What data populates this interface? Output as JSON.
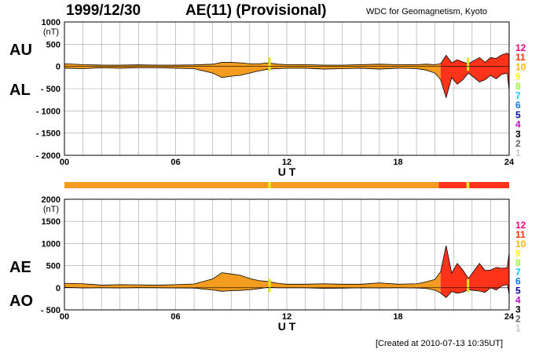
{
  "header": {
    "date": "1999/12/30",
    "title": "AE(11) (Provisional)",
    "source": "WDC for Geomagnetism, Kyoto"
  },
  "footer": {
    "created": "[Created at 2010-07-13 10:35UT]"
  },
  "colors": {
    "fill_moderate": "#f39c1f",
    "fill_high": "#ff3319",
    "marker": "#e6e61e",
    "grid": "#a0a0a0",
    "scale": [
      "#c8c8c8",
      "#646464",
      "#000000",
      "#c800c8",
      "#0000b4",
      "#0078ff",
      "#00c8ff",
      "#96ff32",
      "#ffff00",
      "#ffb400",
      "#ff3200",
      "#ff0078"
    ]
  },
  "activity_scale": [
    "1",
    "2",
    "3",
    "4",
    "5",
    "6",
    "7",
    "8",
    "9",
    "10",
    "11",
    "12"
  ],
  "chart_data": [
    {
      "type": "area",
      "panel": "upper",
      "series_labels": [
        "AU",
        "AL"
      ],
      "unit_label": "(nT)",
      "ylim": [
        -2000,
        1000
      ],
      "yticks": [
        "1000",
        "500",
        "0",
        "- 500",
        "- 1000",
        "- 1500",
        "- 2000"
      ],
      "xlim": [
        0,
        24
      ],
      "xticks": [
        "00",
        "06",
        "12",
        "18",
        "24"
      ],
      "xlabel": "U T",
      "x": [
        0,
        1,
        2,
        3,
        4,
        5,
        6,
        7,
        8,
        8.5,
        9,
        9.5,
        10,
        10.5,
        11,
        11.5,
        12,
        13,
        14,
        15,
        16,
        17,
        18,
        19,
        19.5,
        20,
        20.3,
        20.6,
        20.9,
        21.2,
        21.5,
        21.8,
        22.1,
        22.4,
        22.7,
        23.0,
        23.3,
        23.6,
        23.9,
        24
      ],
      "series": [
        {
          "name": "AU",
          "values": [
            60,
            40,
            30,
            30,
            35,
            30,
            30,
            35,
            50,
            90,
            90,
            80,
            60,
            60,
            80,
            50,
            40,
            40,
            30,
            30,
            40,
            50,
            40,
            40,
            50,
            40,
            60,
            250,
            80,
            150,
            100,
            60,
            130,
            200,
            90,
            200,
            180,
            260,
            300,
            250
          ]
        },
        {
          "name": "AL",
          "values": [
            -40,
            -50,
            -30,
            -40,
            -30,
            -30,
            -40,
            -50,
            -150,
            -250,
            -220,
            -200,
            -150,
            -100,
            -60,
            -50,
            -40,
            -40,
            -60,
            -50,
            -40,
            -60,
            -40,
            -50,
            -80,
            -150,
            -300,
            -700,
            -250,
            -400,
            -300,
            -150,
            -250,
            -350,
            -300,
            -200,
            -280,
            -180,
            -150,
            -550
          ]
        }
      ]
    },
    {
      "type": "area",
      "panel": "lower",
      "series_labels": [
        "AE",
        "AO"
      ],
      "unit_label": "(nT)",
      "ylim": [
        -500,
        2000
      ],
      "yticks": [
        "2000",
        "1500",
        "1000",
        "500",
        "0",
        "- 500"
      ],
      "xlim": [
        0,
        24
      ],
      "xticks": [
        "00",
        "06",
        "12",
        "18",
        "24"
      ],
      "xlabel": "U T",
      "x": [
        0,
        1,
        2,
        3,
        4,
        5,
        6,
        7,
        8,
        8.5,
        9,
        9.5,
        10,
        10.5,
        11,
        11.5,
        12,
        13,
        14,
        15,
        16,
        17,
        18,
        19,
        19.5,
        20,
        20.3,
        20.6,
        20.9,
        21.2,
        21.5,
        21.8,
        22.1,
        22.4,
        22.7,
        23.0,
        23.3,
        23.6,
        23.9,
        24
      ],
      "series": [
        {
          "name": "AE",
          "values": [
            100,
            90,
            60,
            70,
            65,
            60,
            70,
            85,
            200,
            340,
            310,
            280,
            210,
            160,
            140,
            100,
            80,
            80,
            90,
            80,
            80,
            110,
            80,
            90,
            130,
            190,
            360,
            950,
            330,
            550,
            400,
            210,
            380,
            550,
            390,
            400,
            460,
            440,
            450,
            800
          ]
        },
        {
          "name": "AO",
          "values": [
            10,
            -5,
            0,
            -5,
            2,
            0,
            -5,
            -8,
            -50,
            -80,
            -65,
            -60,
            -45,
            -20,
            10,
            0,
            0,
            0,
            -15,
            -10,
            0,
            -5,
            0,
            -5,
            -15,
            -55,
            -120,
            -225,
            -85,
            -125,
            -100,
            -45,
            -60,
            -75,
            -105,
            0,
            -50,
            40,
            75,
            -150
          ]
        }
      ]
    }
  ],
  "activity_bar": [
    {
      "from": 0,
      "to": 11.0,
      "level": "moderate"
    },
    {
      "from": 11.0,
      "to": 11.15,
      "level": "marker"
    },
    {
      "from": 11.15,
      "to": 20.2,
      "level": "moderate"
    },
    {
      "from": 20.2,
      "to": 21.7,
      "level": "high"
    },
    {
      "from": 21.7,
      "to": 21.85,
      "level": "marker"
    },
    {
      "from": 21.85,
      "to": 24,
      "level": "high"
    }
  ]
}
